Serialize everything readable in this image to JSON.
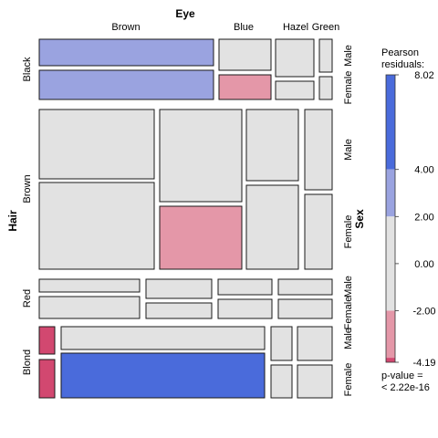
{
  "chart_data": {
    "type": "mosaic",
    "variables": [
      {
        "name": "Eye",
        "levels": [
          "Brown",
          "Blue",
          "Hazel",
          "Green"
        ]
      },
      {
        "name": "Hair",
        "levels": [
          "Black",
          "Brown",
          "Red",
          "Blond"
        ]
      },
      {
        "name": "Sex",
        "levels": [
          "Male",
          "Female"
        ]
      }
    ],
    "shading_legend": {
      "title_lines": [
        "Pearson",
        "residuals:"
      ],
      "max": 8.02,
      "min": -4.19,
      "ticks": [
        8.02,
        4.0,
        2.0,
        0.0,
        -2.0,
        -4.19
      ],
      "tick_labels": [
        "8.02",
        "4.00",
        "2.00",
        "0.00",
        "-2.00",
        "-4.19"
      ],
      "colors": {
        "strong_positive": "#4a6bdb",
        "positive": "#9aa3e0",
        "neutral": "#e2e2e2",
        "negative": "#e497a8",
        "strong_negative": "#d24870"
      },
      "p_value_lines": [
        "p-value =",
        "< 2.22e-16"
      ]
    },
    "cells": [
      {
        "hair": "Black",
        "eye": "Brown",
        "sex": "Male",
        "residual_level": "positive"
      },
      {
        "hair": "Black",
        "eye": "Brown",
        "sex": "Female",
        "residual_level": "positive"
      },
      {
        "hair": "Black",
        "eye": "Blue",
        "sex": "Male",
        "residual_level": "neutral"
      },
      {
        "hair": "Black",
        "eye": "Blue",
        "sex": "Female",
        "residual_level": "negative"
      },
      {
        "hair": "Black",
        "eye": "Hazel",
        "sex": "Male",
        "residual_level": "neutral"
      },
      {
        "hair": "Black",
        "eye": "Hazel",
        "sex": "Female",
        "residual_level": "neutral"
      },
      {
        "hair": "Black",
        "eye": "Green",
        "sex": "Male",
        "residual_level": "neutral"
      },
      {
        "hair": "Black",
        "eye": "Green",
        "sex": "Female",
        "residual_level": "neutral"
      },
      {
        "hair": "Brown",
        "eye": "Brown",
        "sex": "Male",
        "residual_level": "neutral"
      },
      {
        "hair": "Brown",
        "eye": "Brown",
        "sex": "Female",
        "residual_level": "neutral"
      },
      {
        "hair": "Brown",
        "eye": "Blue",
        "sex": "Male",
        "residual_level": "neutral"
      },
      {
        "hair": "Brown",
        "eye": "Blue",
        "sex": "Female",
        "residual_level": "negative"
      },
      {
        "hair": "Brown",
        "eye": "Hazel",
        "sex": "Male",
        "residual_level": "neutral"
      },
      {
        "hair": "Brown",
        "eye": "Hazel",
        "sex": "Female",
        "residual_level": "neutral"
      },
      {
        "hair": "Brown",
        "eye": "Green",
        "sex": "Male",
        "residual_level": "neutral"
      },
      {
        "hair": "Brown",
        "eye": "Green",
        "sex": "Female",
        "residual_level": "neutral"
      },
      {
        "hair": "Red",
        "eye": "Brown",
        "sex": "Male",
        "residual_level": "neutral"
      },
      {
        "hair": "Red",
        "eye": "Brown",
        "sex": "Female",
        "residual_level": "neutral"
      },
      {
        "hair": "Red",
        "eye": "Blue",
        "sex": "Male",
        "residual_level": "neutral"
      },
      {
        "hair": "Red",
        "eye": "Blue",
        "sex": "Female",
        "residual_level": "neutral"
      },
      {
        "hair": "Red",
        "eye": "Hazel",
        "sex": "Male",
        "residual_level": "neutral"
      },
      {
        "hair": "Red",
        "eye": "Hazel",
        "sex": "Female",
        "residual_level": "neutral"
      },
      {
        "hair": "Red",
        "eye": "Green",
        "sex": "Male",
        "residual_level": "neutral"
      },
      {
        "hair": "Red",
        "eye": "Green",
        "sex": "Female",
        "residual_level": "neutral"
      },
      {
        "hair": "Blond",
        "eye": "Brown",
        "sex": "Male",
        "residual_level": "strong_negative"
      },
      {
        "hair": "Blond",
        "eye": "Brown",
        "sex": "Female",
        "residual_level": "strong_negative"
      },
      {
        "hair": "Blond",
        "eye": "Blue",
        "sex": "Male",
        "residual_level": "neutral"
      },
      {
        "hair": "Blond",
        "eye": "Blue",
        "sex": "Female",
        "residual_level": "strong_positive"
      },
      {
        "hair": "Blond",
        "eye": "Hazel",
        "sex": "Male",
        "residual_level": "neutral"
      },
      {
        "hair": "Blond",
        "eye": "Hazel",
        "sex": "Female",
        "residual_level": "neutral"
      },
      {
        "hair": "Blond",
        "eye": "Green",
        "sex": "Male",
        "residual_level": "neutral"
      },
      {
        "hair": "Blond",
        "eye": "Green",
        "sex": "Female",
        "residual_level": "neutral"
      }
    ]
  }
}
